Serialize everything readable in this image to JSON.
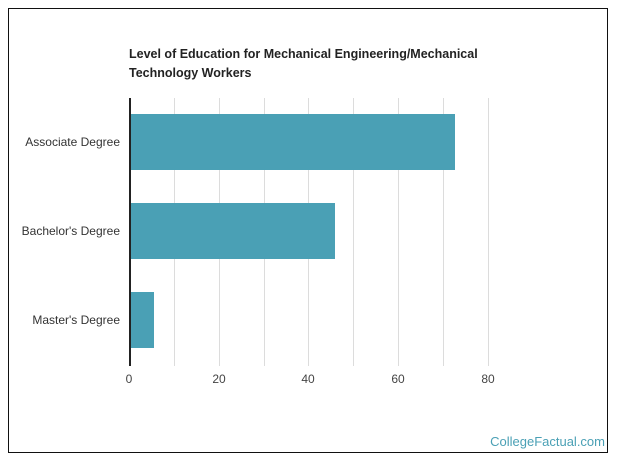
{
  "chart_data": {
    "type": "bar",
    "orientation": "horizontal",
    "title": "Level of Education for Mechanical Engineering/Mechanical Technology Workers",
    "categories": [
      "Associate Degree",
      "Bachelor's Degree",
      "Master's Degree"
    ],
    "values": [
      72.6,
      45.9,
      5.6
    ],
    "xlabel": "",
    "ylabel": "",
    "xlim": [
      0,
      80
    ],
    "xticks": [
      "0",
      "20",
      "40",
      "60",
      "80"
    ],
    "grid": true,
    "legend": null,
    "bar_color": "#4aa0b5"
  },
  "chart": {
    "title": "Level of Education for Mechanical Engineering/Mechanical Technology Workers",
    "bars": [
      {
        "label": "Associate Degree",
        "value": 72.6
      },
      {
        "label": "Bachelor's Degree",
        "value": 45.9
      },
      {
        "label": "Master's Degree",
        "value": 5.6
      }
    ],
    "ticks": [
      "0",
      "20",
      "40",
      "60",
      "80"
    ]
  },
  "footer": {
    "brand": "CollegeFactual.com"
  }
}
